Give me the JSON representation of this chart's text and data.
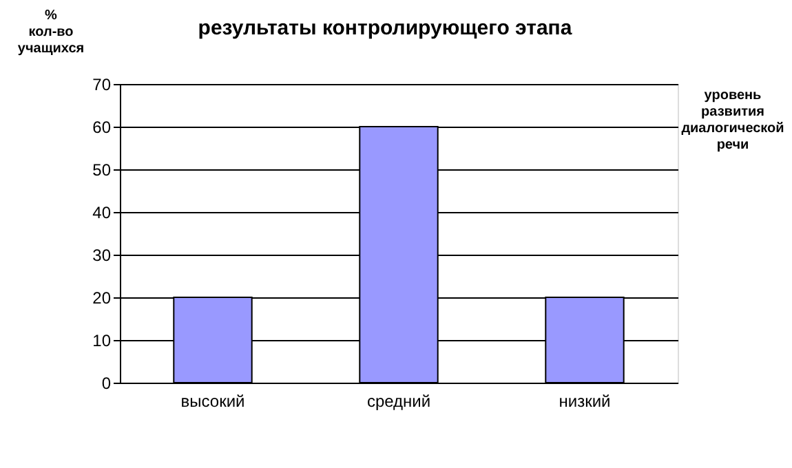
{
  "chart_data": {
    "type": "bar",
    "title": "результаты контролирующего этапа",
    "ylabel": "% кол-во учащихся",
    "xlabel": "уровень развития диалогической речи",
    "categories": [
      "высокий",
      "средний",
      "низкий"
    ],
    "values": [
      20,
      60,
      20
    ],
    "color": "#9999ff",
    "ylim": [
      0,
      70
    ],
    "yticks": [
      0,
      10,
      20,
      30,
      40,
      50,
      60,
      70
    ],
    "grid": "y"
  }
}
